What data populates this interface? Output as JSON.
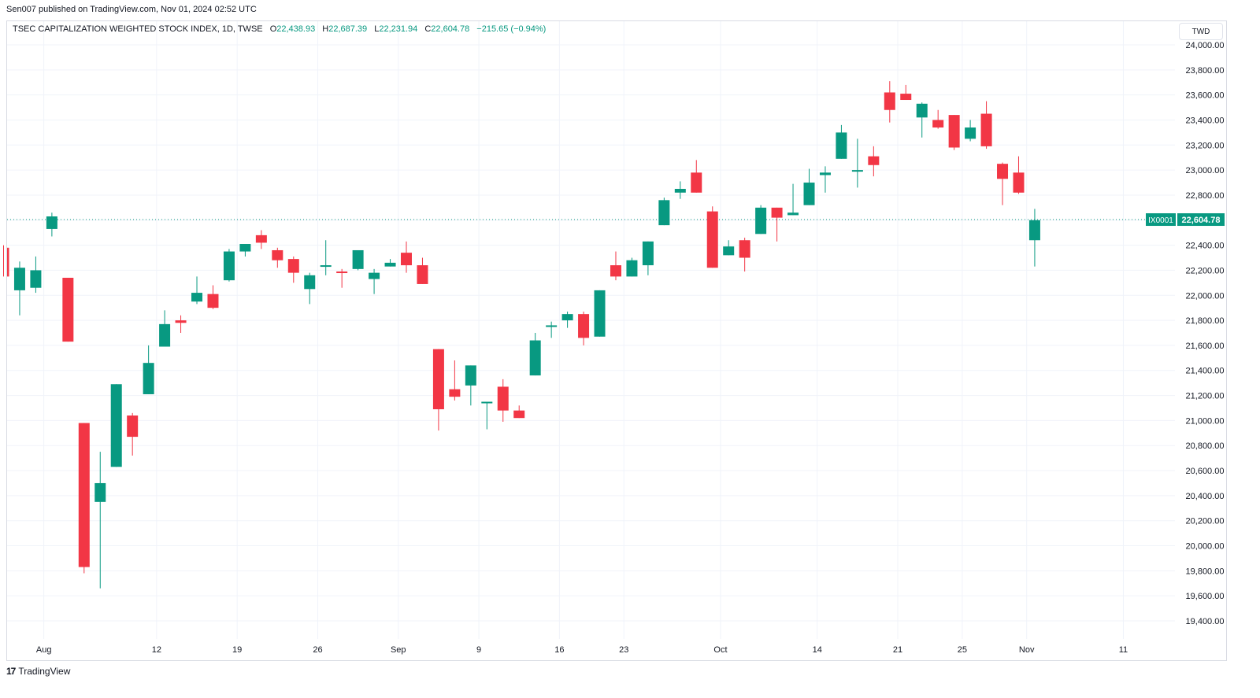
{
  "header": {
    "published": "Sen007 published on TradingView.com, Nov 01, 2024 02:52 UTC"
  },
  "legend": {
    "symbol": "TSEC CAPITALIZATION WEIGHTED STOCK INDEX, 1D, TWSE",
    "open_label": "O",
    "open": "22,438.93",
    "high_label": "H",
    "high": "22,687.39",
    "low_label": "L",
    "low": "22,231.94",
    "close_label": "C",
    "close": "22,604.78",
    "change": "−215.65 (−0.94%)"
  },
  "currency": "TWD",
  "price_tag": {
    "symbol": "IX0001",
    "value": "22,604.78"
  },
  "footer": {
    "brand": "TradingView",
    "logo_text": "17"
  },
  "colors": {
    "up": "#089981",
    "down": "#f23645",
    "grid": "#f0f3fa",
    "price_line": "#089981"
  },
  "chart_data": {
    "type": "candlestick",
    "ylim": [
      19400,
      24000
    ],
    "y_ticks": [
      "19,400.00",
      "19,600.00",
      "19,800.00",
      "20,000.00",
      "20,200.00",
      "20,400.00",
      "20,600.00",
      "20,800.00",
      "21,000.00",
      "21,200.00",
      "21,400.00",
      "21,600.00",
      "21,800.00",
      "22,000.00",
      "22,200.00",
      "22,400.00",
      "22,600.00",
      "22,800.00",
      "23,000.00",
      "23,200.00",
      "23,400.00",
      "23,600.00",
      "23,800.00",
      "24,000.00"
    ],
    "y_tick_values": [
      19400,
      19600,
      19800,
      20000,
      20200,
      20400,
      20600,
      20800,
      21000,
      21200,
      21400,
      21600,
      21800,
      22000,
      22200,
      22400,
      22600,
      22800,
      23000,
      23200,
      23400,
      23600,
      23800,
      24000
    ],
    "x_ticks": [
      {
        "label": "Aug",
        "bar": 2.5
      },
      {
        "label": "12",
        "bar": 9.5
      },
      {
        "label": "19",
        "bar": 14.5
      },
      {
        "label": "26",
        "bar": 19.5
      },
      {
        "label": "Sep",
        "bar": 24.5
      },
      {
        "label": "9",
        "bar": 29.5
      },
      {
        "label": "16",
        "bar": 34.5
      },
      {
        "label": "23",
        "bar": 38.5
      },
      {
        "label": "Oct",
        "bar": 44.5
      },
      {
        "label": "14",
        "bar": 50.5
      },
      {
        "label": "21",
        "bar": 55.5
      },
      {
        "label": "25",
        "bar": 59.5
      },
      {
        "label": "Nov",
        "bar": 63.5
      },
      {
        "label": "11",
        "bar": 69.5
      }
    ],
    "last_price": 22604.78,
    "candles": [
      {
        "o": 22380,
        "h": 22400,
        "l": 22150,
        "c": 22150
      },
      {
        "o": 22040,
        "h": 22270,
        "l": 21840,
        "c": 22220
      },
      {
        "o": 22060,
        "h": 22310,
        "l": 22020,
        "c": 22200
      },
      {
        "o": 22530,
        "h": 22660,
        "l": 22470,
        "c": 22630
      },
      {
        "o": 22140,
        "h": 22140,
        "l": 21630,
        "c": 21630
      },
      {
        "o": 20980,
        "h": 20980,
        "l": 19780,
        "c": 19830
      },
      {
        "o": 20350,
        "h": 20750,
        "l": 19660,
        "c": 20500
      },
      {
        "o": 20630,
        "h": 21290,
        "l": 20630,
        "c": 21290
      },
      {
        "o": 21040,
        "h": 21060,
        "l": 20720,
        "c": 20870
      },
      {
        "o": 21210,
        "h": 21600,
        "l": 21210,
        "c": 21460
      },
      {
        "o": 21590,
        "h": 21880,
        "l": 21590,
        "c": 21770
      },
      {
        "o": 21800,
        "h": 21840,
        "l": 21700,
        "c": 21780
      },
      {
        "o": 21950,
        "h": 22150,
        "l": 21930,
        "c": 22020
      },
      {
        "o": 22010,
        "h": 22080,
        "l": 21890,
        "c": 21900
      },
      {
        "o": 22120,
        "h": 22370,
        "l": 22110,
        "c": 22350
      },
      {
        "o": 22350,
        "h": 22390,
        "l": 22310,
        "c": 22410
      },
      {
        "o": 22480,
        "h": 22520,
        "l": 22370,
        "c": 22420
      },
      {
        "o": 22360,
        "h": 22380,
        "l": 22220,
        "c": 22280
      },
      {
        "o": 22290,
        "h": 22310,
        "l": 22100,
        "c": 22180
      },
      {
        "o": 22050,
        "h": 22180,
        "l": 21930,
        "c": 22160
      },
      {
        "o": 22230,
        "h": 22440,
        "l": 22160,
        "c": 22240
      },
      {
        "o": 22190,
        "h": 22210,
        "l": 22060,
        "c": 22180
      },
      {
        "o": 22210,
        "h": 22360,
        "l": 22200,
        "c": 22360
      },
      {
        "o": 22130,
        "h": 22210,
        "l": 22010,
        "c": 22180
      },
      {
        "o": 22230,
        "h": 22290,
        "l": 22230,
        "c": 22260
      },
      {
        "o": 22340,
        "h": 22430,
        "l": 22180,
        "c": 22240
      },
      {
        "o": 22240,
        "h": 22300,
        "l": 22090,
        "c": 22090
      },
      {
        "o": 21570,
        "h": 21570,
        "l": 20920,
        "c": 21090
      },
      {
        "o": 21250,
        "h": 21480,
        "l": 21160,
        "c": 21190
      },
      {
        "o": 21280,
        "h": 21440,
        "l": 21120,
        "c": 21440
      },
      {
        "o": 21140,
        "h": 21140,
        "l": 20930,
        "c": 21150
      },
      {
        "o": 21270,
        "h": 21330,
        "l": 20990,
        "c": 21080
      },
      {
        "o": 21080,
        "h": 21120,
        "l": 21020,
        "c": 21020
      },
      {
        "o": 21360,
        "h": 21700,
        "l": 21360,
        "c": 21640
      },
      {
        "o": 21760,
        "h": 21790,
        "l": 21660,
        "c": 21760
      },
      {
        "o": 21800,
        "h": 21870,
        "l": 21740,
        "c": 21850
      },
      {
        "o": 21850,
        "h": 21870,
        "l": 21600,
        "c": 21660
      },
      {
        "o": 21670,
        "h": 22040,
        "l": 21670,
        "c": 22040
      },
      {
        "o": 22240,
        "h": 22350,
        "l": 22120,
        "c": 22150
      },
      {
        "o": 22150,
        "h": 22300,
        "l": 22150,
        "c": 22280
      },
      {
        "o": 22240,
        "h": 22430,
        "l": 22160,
        "c": 22430
      },
      {
        "o": 22560,
        "h": 22780,
        "l": 22560,
        "c": 22760
      },
      {
        "o": 22820,
        "h": 22910,
        "l": 22770,
        "c": 22850
      },
      {
        "o": 22980,
        "h": 23080,
        "l": 22820,
        "c": 22820
      },
      {
        "o": 22670,
        "h": 22710,
        "l": 22220,
        "c": 22220
      },
      {
        "o": 22320,
        "h": 22440,
        "l": 22320,
        "c": 22390
      },
      {
        "o": 22440,
        "h": 22460,
        "l": 22190,
        "c": 22300
      },
      {
        "o": 22490,
        "h": 22720,
        "l": 22490,
        "c": 22700
      },
      {
        "o": 22700,
        "h": 22700,
        "l": 22430,
        "c": 22620
      },
      {
        "o": 22640,
        "h": 22890,
        "l": 22640,
        "c": 22660
      },
      {
        "o": 22720,
        "h": 23010,
        "l": 22720,
        "c": 22900
      },
      {
        "o": 22960,
        "h": 23030,
        "l": 22820,
        "c": 22980
      },
      {
        "o": 23090,
        "h": 23360,
        "l": 23090,
        "c": 23300
      },
      {
        "o": 22990,
        "h": 23250,
        "l": 22860,
        "c": 23000
      },
      {
        "o": 23110,
        "h": 23190,
        "l": 22950,
        "c": 23040
      },
      {
        "o": 23620,
        "h": 23710,
        "l": 23380,
        "c": 23480
      },
      {
        "o": 23610,
        "h": 23680,
        "l": 23560,
        "c": 23560
      },
      {
        "o": 23420,
        "h": 23540,
        "l": 23260,
        "c": 23530
      },
      {
        "o": 23400,
        "h": 23480,
        "l": 23330,
        "c": 23340
      },
      {
        "o": 23440,
        "h": 23440,
        "l": 23160,
        "c": 23180
      },
      {
        "o": 23250,
        "h": 23400,
        "l": 23230,
        "c": 23340
      },
      {
        "o": 23450,
        "h": 23550,
        "l": 23170,
        "c": 23190
      },
      {
        "o": 23050,
        "h": 23060,
        "l": 22720,
        "c": 22930
      },
      {
        "o": 22980,
        "h": 23110,
        "l": 22810,
        "c": 22820
      },
      {
        "o": 22440,
        "h": 22690,
        "l": 22230,
        "c": 22600
      }
    ]
  }
}
